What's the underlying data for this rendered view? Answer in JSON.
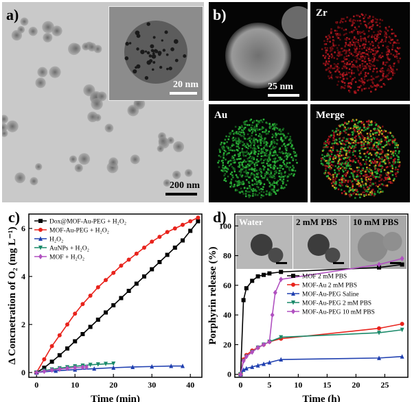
{
  "panel_a": {
    "label": "a)",
    "scale_main": "200 nm",
    "scale_inset": "20 nm"
  },
  "panel_b": {
    "label": "b)",
    "scale": "25 nm",
    "channels": [
      "Zr",
      "Au",
      "Merge"
    ]
  },
  "chart_data": [
    {
      "type": "line",
      "panel": "c)",
      "xlabel": "Time (min)",
      "ylabel": "Δ Concnetration of O₂ (mg L⁻¹)",
      "xlim": [
        -2,
        43
      ],
      "ylim": [
        -0.2,
        6.6
      ],
      "xticks": [
        0,
        10,
        20,
        30,
        40
      ],
      "yticks": [
        0,
        2,
        4,
        6
      ],
      "legend_position": "top-left",
      "series": [
        {
          "name": "Dox@MOF-Au-PEG + H₂O₂",
          "color": "#000000",
          "marker": "square",
          "x": [
            0,
            2,
            4,
            6,
            8,
            10,
            12,
            14,
            16,
            18,
            20,
            22,
            24,
            26,
            28,
            30,
            32,
            34,
            36,
            38,
            40,
            42
          ],
          "y": [
            0,
            0.2,
            0.45,
            0.72,
            1.0,
            1.3,
            1.6,
            1.9,
            2.2,
            2.5,
            2.8,
            3.1,
            3.4,
            3.7,
            4.0,
            4.3,
            4.6,
            4.9,
            5.2,
            5.5,
            5.9,
            6.3
          ]
        },
        {
          "name": "MOF-Au-PEG + H₂O₂",
          "color": "#e8231c",
          "marker": "circle",
          "x": [
            0,
            2,
            4,
            6,
            8,
            10,
            12,
            14,
            16,
            18,
            20,
            22,
            24,
            26,
            28,
            30,
            32,
            34,
            36,
            38,
            40,
            42
          ],
          "y": [
            0,
            0.55,
            1.1,
            1.55,
            2.0,
            2.45,
            2.85,
            3.2,
            3.55,
            3.85,
            4.15,
            4.45,
            4.7,
            4.95,
            5.2,
            5.45,
            5.65,
            5.85,
            6.0,
            6.15,
            6.3,
            6.45
          ]
        },
        {
          "name": "H₂O₂",
          "color": "#2040b0",
          "marker": "triangle",
          "x": [
            0,
            5,
            10,
            15,
            20,
            25,
            30,
            35,
            38
          ],
          "y": [
            0,
            0.07,
            0.12,
            0.16,
            0.2,
            0.23,
            0.25,
            0.27,
            0.27
          ]
        },
        {
          "name": "AuNPs + H₂O₂",
          "color": "#1a8a6a",
          "marker": "triangle-down",
          "x": [
            0,
            2,
            4,
            6,
            8,
            10,
            12,
            14,
            16,
            18,
            20
          ],
          "y": [
            0,
            0.08,
            0.13,
            0.18,
            0.22,
            0.26,
            0.29,
            0.32,
            0.34,
            0.36,
            0.37
          ]
        },
        {
          "name": "MOF + H₂O₂",
          "color": "#b050c0",
          "marker": "diamond",
          "x": [
            0,
            2,
            4,
            6,
            8,
            10,
            12,
            13
          ],
          "y": [
            0,
            0.05,
            0.1,
            0.14,
            0.17,
            0.2,
            0.22,
            0.23
          ]
        }
      ]
    },
    {
      "type": "line",
      "panel": "d)",
      "xlabel": "Time (h)",
      "ylabel": "Porphyrin release (%)",
      "xlim": [
        -1,
        29
      ],
      "ylim": [
        -2,
        108
      ],
      "xticks": [
        0,
        5,
        10,
        15,
        20,
        25
      ],
      "yticks": [
        0,
        20,
        40,
        60,
        80,
        100
      ],
      "legend_position": "center-right",
      "inset_labels": [
        "Water",
        "2 mM PBS",
        "10 mM PBS"
      ],
      "series": [
        {
          "name": "MOF 2 mM PBS",
          "color": "#000000",
          "marker": "square",
          "x": [
            0,
            0.5,
            1,
            2,
            3,
            4,
            5,
            7,
            24,
            28
          ],
          "y": [
            0,
            50,
            58,
            63,
            66,
            67,
            68,
            69,
            72,
            74
          ]
        },
        {
          "name": "MOF-Au 2 mM PBS",
          "color": "#e8231c",
          "marker": "circle",
          "x": [
            0,
            0.5,
            1,
            2,
            3,
            4,
            5,
            7,
            24,
            28
          ],
          "y": [
            0,
            10,
            13,
            16,
            18,
            20,
            22,
            24,
            31,
            34
          ]
        },
        {
          "name": "MOF-Au-PEG Saline",
          "color": "#2040b0",
          "marker": "triangle",
          "x": [
            0,
            0.5,
            1,
            2,
            3,
            4,
            5,
            7,
            24,
            28
          ],
          "y": [
            0,
            3,
            4,
            5,
            6,
            7,
            8,
            10,
            11,
            12
          ]
        },
        {
          "name": "MOF-Au-PEG 2 mM PBS",
          "color": "#1a8a6a",
          "marker": "triangle-down",
          "x": [
            0,
            0.5,
            1,
            2,
            3,
            4,
            5,
            7,
            24,
            28
          ],
          "y": [
            0,
            9,
            12,
            15,
            18,
            20,
            22,
            25,
            28,
            30
          ]
        },
        {
          "name": "MOF-Au-PEG 10 mM PBS",
          "color": "#b050c0",
          "marker": "diamond",
          "x": [
            0,
            0.5,
            1,
            2,
            3,
            4,
            5,
            5.5,
            6,
            7,
            24,
            28
          ],
          "y": [
            0,
            9,
            12,
            15,
            18,
            20,
            22,
            40,
            55,
            64,
            74,
            78
          ]
        }
      ]
    }
  ]
}
